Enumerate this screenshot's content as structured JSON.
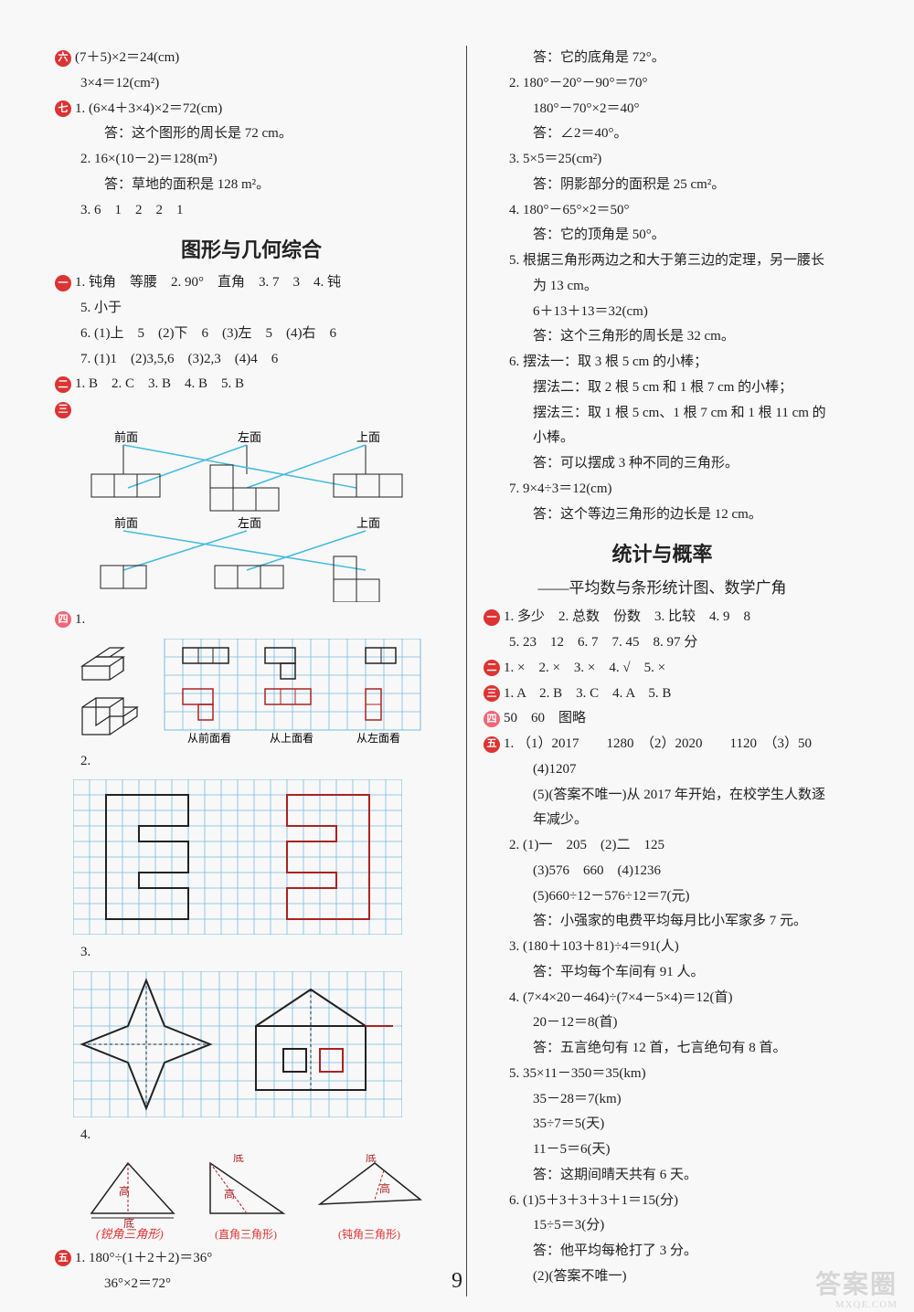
{
  "colors": {
    "red": "#d33",
    "ora": "#e67",
    "grn": "#5a5",
    "blu": "#47c",
    "cyan": "#4bd",
    "black": "#222",
    "grid": "#7bd",
    "darkred": "#a22"
  },
  "left": {
    "pre": [
      {
        "bullet": "六",
        "bclass": "b-red",
        "text": "(7＋5)×2＝24(cm)"
      },
      {
        "indent": 1,
        "text": "3×4＝12(cm²)"
      },
      {
        "bullet": "七",
        "bclass": "b-red",
        "text": "1. (6×4＋3×4)×2＝72(cm)"
      },
      {
        "indent": 2,
        "text": "答：这个图形的周长是 72 cm。"
      },
      {
        "indent": 1,
        "text": "2. 16×(10－2)＝128(m²)"
      },
      {
        "indent": 2,
        "text": "答：草地的面积是 128 m²。"
      },
      {
        "indent": 1,
        "text": "3. 6　1　2　2　1"
      }
    ],
    "title": "图形与几何综合",
    "sec1": [
      {
        "bullet": "一",
        "bclass": "b-red",
        "text": "1. 钝角　等腰　2. 90°　直角　3. 7　3　4. 钝"
      },
      {
        "indent": 1,
        "text": "5. 小于"
      },
      {
        "indent": 1,
        "text": "6. (1)上　5　(2)下　6　(3)左　5　(4)右　6"
      },
      {
        "indent": 1,
        "text": "7. (1)1　(2)3,5,6　(3)2,3　(4)4　6"
      },
      {
        "bullet": "二",
        "bclass": "b-red",
        "text": "1. B　2. C　3. B　4. B　5. B"
      }
    ],
    "diag3_labels": {
      "a": "前面",
      "b": "左面",
      "c": "上面"
    },
    "diag4_labels": {
      "a": "从前面看",
      "b": "从上面看",
      "c": "从左面看"
    },
    "tri_labels": {
      "a": "(锐角三角形)",
      "b": "(直角三角形)",
      "c": "(钝角三角形)",
      "gao": "高",
      "di": "底"
    },
    "sec5": [
      {
        "bullet": "五",
        "bclass": "b-red",
        "text": "1. 180°÷(1＋2＋2)＝36°"
      },
      {
        "indent": 2,
        "text": "36°×2＝72°"
      }
    ]
  },
  "right": {
    "top": [
      {
        "indent": 2,
        "text": "答：它的底角是 72°。"
      },
      {
        "indent": 1,
        "text": "2. 180°－20°－90°＝70°"
      },
      {
        "indent": 2,
        "text": "180°－70°×2＝40°"
      },
      {
        "indent": 2,
        "text": "答：∠2＝40°。"
      },
      {
        "indent": 1,
        "text": "3. 5×5＝25(cm²)"
      },
      {
        "indent": 2,
        "text": "答：阴影部分的面积是 25 cm²。"
      },
      {
        "indent": 1,
        "text": "4. 180°－65°×2＝50°"
      },
      {
        "indent": 2,
        "text": "答：它的顶角是 50°。"
      },
      {
        "indent": 1,
        "text": "5. 根据三角形两边之和大于第三边的定理，另一腰长"
      },
      {
        "indent": 2,
        "text": "为 13 cm。"
      },
      {
        "indent": 2,
        "text": "6＋13＋13＝32(cm)"
      },
      {
        "indent": 2,
        "text": "答：这个三角形的周长是 32 cm。"
      },
      {
        "indent": 1,
        "text": "6. 摆法一：取 3 根 5 cm 的小棒；"
      },
      {
        "indent": 2,
        "text": "摆法二：取 2 根 5 cm 和 1 根 7 cm 的小棒；"
      },
      {
        "indent": 2,
        "text": "摆法三：取 1 根 5 cm、1 根 7 cm 和 1 根 11 cm 的"
      },
      {
        "indent": 2,
        "text": "小棒。"
      },
      {
        "indent": 2,
        "text": "答：可以摆成 3 种不同的三角形。"
      },
      {
        "indent": 1,
        "text": "7. 9×4÷3＝12(cm)"
      },
      {
        "indent": 2,
        "text": "答：这个等边三角形的边长是 12 cm。"
      }
    ],
    "title": "统计与概率",
    "subtitle": "——平均数与条形统计图、数学广角",
    "body": [
      {
        "bullet": "一",
        "bclass": "b-red",
        "text": "1. 多少　2. 总数　份数　3. 比较　4. 9　8"
      },
      {
        "indent": 1,
        "text": "5. 23　12　6. 7　7. 45　8. 97 分"
      },
      {
        "bullet": "二",
        "bclass": "b-red",
        "text": "1. ×　2. ×　3. ×　4. √　5. ×"
      },
      {
        "bullet": "三",
        "bclass": "b-red",
        "text": "1. A　2. B　3. C　4. A　5. B"
      },
      {
        "bullet": "四",
        "bclass": "b-ora",
        "text": "50　60　图略"
      },
      {
        "bullet": "五",
        "bclass": "b-red",
        "text": "1. （1）2017　　1280　（2）2020　　1120　（3）50"
      },
      {
        "indent": 2,
        "text": "(4)1207"
      },
      {
        "indent": 2,
        "text": "(5)(答案不唯一)从 2017 年开始，在校学生人数逐"
      },
      {
        "indent": 2,
        "text": "年减少。"
      },
      {
        "indent": 1,
        "text": "2. (1)一　205　(2)二　125"
      },
      {
        "indent": 2,
        "text": "(3)576　660　(4)1236"
      },
      {
        "indent": 2,
        "text": "(5)660÷12－576÷12＝7(元)"
      },
      {
        "indent": 2,
        "text": "答：小强家的电费平均每月比小军家多 7 元。"
      },
      {
        "indent": 1,
        "text": "3. (180＋103＋81)÷4＝91(人)"
      },
      {
        "indent": 2,
        "text": "答：平均每个车间有 91 人。"
      },
      {
        "indent": 1,
        "text": "4. (7×4×20－464)÷(7×4－5×4)＝12(首)"
      },
      {
        "indent": 2,
        "text": "20－12＝8(首)"
      },
      {
        "indent": 2,
        "text": "答：五言绝句有 12 首，七言绝句有 8 首。"
      },
      {
        "indent": 1,
        "text": "5. 35×11－350＝35(km)"
      },
      {
        "indent": 2,
        "text": "35－28＝7(km)"
      },
      {
        "indent": 2,
        "text": "35÷7＝5(天)"
      },
      {
        "indent": 2,
        "text": "11－5＝6(天)"
      },
      {
        "indent": 2,
        "text": "答：这期间晴天共有 6 天。"
      },
      {
        "indent": 1,
        "text": "6. (1)5＋3＋3＋3＋1＝15(分)"
      },
      {
        "indent": 2,
        "text": "15÷5＝3(分)"
      },
      {
        "indent": 2,
        "text": "答：他平均每枪打了 3 分。"
      },
      {
        "indent": 2,
        "text": "(2)(答案不唯一)"
      }
    ]
  },
  "page": "9",
  "wm": "答案圈",
  "wm2": "MXQE.COM"
}
